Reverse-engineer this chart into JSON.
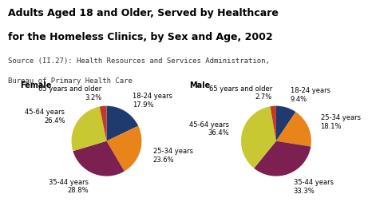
{
  "title_line1": "Adults Aged 18 and Older, Served by Healthcare",
  "title_line2": "for the Homeless Clinics, by Sex and Age, 2002",
  "source_line1": "Source (II.27): Health Resources and Services Administration,",
  "source_line2": "Bureau of Primary Health Care",
  "female_label": "Female",
  "male_label": "Male",
  "age_groups": [
    "18-24 years",
    "25-34 years",
    "35-44 years",
    "45-64 years",
    "65 years and older"
  ],
  "female_values": [
    17.9,
    23.6,
    28.8,
    26.4,
    3.2
  ],
  "male_values": [
    9.4,
    18.1,
    33.3,
    36.4,
    2.7
  ],
  "colors": [
    "#1e3a6e",
    "#e8841a",
    "#7b2050",
    "#c8c832",
    "#c0392b"
  ],
  "background_color": "#ffffff",
  "title_fontsize": 9,
  "source_fontsize": 6.5,
  "label_fontsize": 6.0
}
